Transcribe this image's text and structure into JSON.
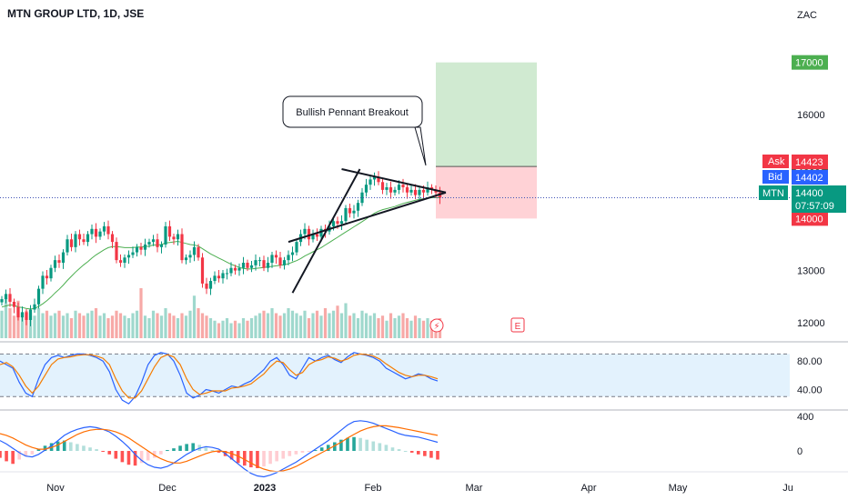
{
  "header": {
    "title": "MTN GROUP LTD, 1D, JSE"
  },
  "currency": "ZAC",
  "chart_data": [
    {
      "type": "candlestick",
      "title": "MTN GROUP LTD, 1D, JSE",
      "ylim": [
        11700,
        17850
      ],
      "y_ticks": [
        "12000",
        "13000",
        "16000"
      ],
      "x_ticks": [
        "Nov",
        "Dec",
        "2023",
        "Feb",
        "Mar",
        "Apr",
        "May",
        "Ju"
      ],
      "closes": [
        12450,
        12550,
        12400,
        12300,
        12100,
        12200,
        12050,
        12250,
        12350,
        12650,
        12900,
        12850,
        13050,
        13200,
        13150,
        13350,
        13600,
        13450,
        13700,
        13600,
        13550,
        13700,
        13800,
        13650,
        13750,
        13850,
        13700,
        13550,
        13200,
        13150,
        13250,
        13300,
        13350,
        13450,
        13400,
        13500,
        13550,
        13600,
        13450,
        13500,
        13850,
        13650,
        13600,
        13700,
        13200,
        13250,
        13300,
        13450,
        13250,
        12750,
        12650,
        12800,
        12900,
        12850,
        12950,
        12950,
        13050,
        13000,
        13050,
        13150,
        13050,
        13100,
        13200,
        13200,
        13050,
        13150,
        13300,
        13250,
        13100,
        13200,
        13300,
        13350,
        13550,
        13700,
        13800,
        13600,
        13700,
        13650,
        13800,
        13750,
        13850,
        13950,
        13900,
        13950,
        14200,
        14100,
        14150,
        14300,
        14500,
        14650,
        14750,
        14800,
        14700,
        14550,
        14600,
        14500,
        14550,
        14650,
        14600,
        14500,
        14550,
        14450,
        14550,
        14500,
        14600,
        14550,
        14500,
        14400
      ],
      "ma_closes": [
        12300,
        12320,
        12340,
        12330,
        12300,
        12290,
        12270,
        12260,
        12270,
        12310,
        12360,
        12420,
        12490,
        12570,
        12640,
        12720,
        12810,
        12890,
        12970,
        13040,
        13110,
        13170,
        13240,
        13300,
        13350,
        13400,
        13440,
        13460,
        13460,
        13450,
        13440,
        13440,
        13440,
        13450,
        13450,
        13460,
        13470,
        13490,
        13490,
        13500,
        13530,
        13540,
        13550,
        13560,
        13540,
        13520,
        13500,
        13490,
        13470,
        13420,
        13370,
        13320,
        13280,
        13240,
        13200,
        13160,
        13120,
        13090,
        13060,
        13040,
        13030,
        13030,
        13040,
        13050,
        13060,
        13070,
        13080,
        13090,
        13100,
        13110,
        13130,
        13160,
        13190,
        13230,
        13280,
        13320,
        13360,
        13400,
        13440,
        13490,
        13540,
        13590,
        13640,
        13690,
        13740,
        13790,
        13840,
        13890,
        13940,
        13990,
        14050,
        14100,
        14140,
        14170,
        14190,
        14210,
        14230,
        14260,
        14290,
        14310,
        14330,
        14350,
        14370,
        14380,
        14390,
        14400,
        14400,
        14400
      ],
      "last_price": "14400",
      "countdown": "07:57:09",
      "symbol": "MTN",
      "ask": {
        "label": "Ask",
        "price": "14423"
      },
      "bid": {
        "label": "Bid",
        "price": "14402"
      },
      "position_tags": {
        "target": "17000",
        "entry": "15000",
        "stop": "14000"
      },
      "long_position": {
        "target": 17000,
        "entry": 15000,
        "stop": 14000
      },
      "pennant": {
        "pole": [
          {
            "i": 71,
            "y": 12570
          },
          {
            "i": 83,
            "y": 14950
          }
        ],
        "upper": [
          {
            "i": 83,
            "y": 14950
          },
          {
            "i": 104,
            "y": 14500
          }
        ],
        "lower": [
          {
            "i": 70,
            "y": 13550
          },
          {
            "i": 104,
            "y": 14500
          }
        ]
      },
      "annotation": "Bullish Pennant Breakout",
      "volume": [
        0.55,
        0.8,
        0.6,
        0.45,
        0.75,
        0.5,
        0.55,
        0.5,
        0.45,
        0.6,
        0.5,
        0.55,
        0.45,
        0.5,
        0.55,
        0.45,
        0.5,
        0.4,
        0.55,
        0.5,
        0.45,
        0.5,
        0.55,
        0.6,
        0.45,
        0.5,
        0.4,
        0.45,
        0.55,
        0.5,
        0.45,
        0.4,
        0.5,
        0.55,
        1.0,
        0.45,
        0.4,
        0.55,
        0.5,
        0.45,
        0.6,
        0.5,
        0.45,
        0.4,
        0.5,
        0.45,
        0.55,
        0.85,
        0.6,
        0.5,
        0.45,
        0.4,
        0.35,
        0.3,
        0.35,
        0.4,
        0.3,
        0.35,
        0.3,
        0.4,
        0.35,
        0.4,
        0.45,
        0.5,
        0.55,
        0.5,
        0.6,
        0.5,
        0.45,
        0.5,
        0.6,
        0.55,
        0.5,
        0.45,
        0.55,
        0.4,
        0.5,
        0.55,
        0.45,
        0.6,
        0.5,
        0.55,
        0.65,
        0.5,
        0.7,
        0.45,
        0.5,
        0.4,
        0.55,
        0.5,
        0.45,
        0.5,
        0.4,
        0.45,
        0.35,
        0.5,
        0.4,
        0.45,
        0.5,
        0.4,
        0.35,
        0.45,
        0.4,
        0.35,
        0.4,
        0.35,
        0.3,
        0.4
      ],
      "event_markers": [
        "dividend-icon",
        "earnings-icon"
      ],
      "earnings_label": "E"
    },
    {
      "type": "line",
      "name": "stochastic",
      "ylim": [
        15,
        102
      ],
      "y_ticks": [
        "80.00",
        "40.00"
      ],
      "band": [
        30,
        90
      ],
      "series": [
        {
          "color": "#2962ff",
          "values": [
            80,
            75,
            70,
            50,
            35,
            30,
            55,
            75,
            85,
            88,
            85,
            88,
            90,
            90,
            88,
            85,
            80,
            65,
            40,
            25,
            20,
            30,
            50,
            75,
            88,
            92,
            90,
            80,
            60,
            35,
            28,
            32,
            40,
            38,
            35,
            40,
            45,
            43,
            48,
            52,
            60,
            68,
            80,
            85,
            75,
            60,
            55,
            70,
            85,
            80,
            85,
            88,
            82,
            78,
            86,
            92,
            90,
            88,
            85,
            80,
            70,
            65,
            60,
            55,
            58,
            62,
            60,
            55,
            52
          ]
        },
        {
          "color": "#f57c00",
          "values": [
            75,
            78,
            72,
            60,
            45,
            35,
            45,
            60,
            75,
            83,
            85,
            86,
            88,
            89,
            89,
            87,
            84,
            75,
            55,
            38,
            28,
            28,
            38,
            55,
            72,
            85,
            89,
            86,
            75,
            55,
            40,
            33,
            35,
            38,
            38,
            38,
            42,
            43,
            45,
            48,
            55,
            62,
            72,
            80,
            78,
            68,
            60,
            64,
            75,
            80,
            82,
            86,
            84,
            80,
            83,
            88,
            90,
            89,
            87,
            83,
            76,
            70,
            64,
            60,
            58,
            60,
            60,
            58,
            55
          ]
        }
      ]
    },
    {
      "type": "bar",
      "name": "macd",
      "ylim": [
        -600,
        600
      ],
      "y_ticks": [
        "400",
        "0"
      ],
      "histogram": [
        -80,
        -120,
        -150,
        -100,
        -60,
        -40,
        20,
        60,
        90,
        110,
        120,
        100,
        80,
        60,
        40,
        20,
        -10,
        -40,
        -90,
        -130,
        -160,
        -170,
        -140,
        -110,
        -80,
        -40,
        10,
        30,
        60,
        80,
        90,
        70,
        40,
        10,
        -20,
        -60,
        -100,
        -140,
        -170,
        -190,
        -200,
        -180,
        -150,
        -120,
        -90,
        -60,
        -40,
        -20,
        -10,
        10,
        40,
        70,
        100,
        130,
        150,
        160,
        150,
        130,
        110,
        90,
        70,
        40,
        20,
        0,
        -20,
        -40,
        -60,
        -80,
        -100
      ],
      "macd_line": [
        120,
        80,
        30,
        -20,
        -60,
        -70,
        -40,
        10,
        60,
        120,
        180,
        220,
        250,
        270,
        280,
        270,
        250,
        220,
        170,
        110,
        40,
        -40,
        -110,
        -160,
        -190,
        -200,
        -180,
        -140,
        -90,
        -40,
        0,
        30,
        50,
        40,
        20,
        -30,
        -90,
        -150,
        -210,
        -260,
        -290,
        -300,
        -280,
        -250,
        -210,
        -170,
        -130,
        -80,
        -30,
        20,
        70,
        120,
        180,
        240,
        300,
        340,
        350,
        340,
        320,
        290,
        260,
        230,
        200,
        180,
        170,
        160,
        140,
        120,
        100
      ],
      "signal_line": [
        200,
        180,
        150,
        110,
        70,
        40,
        20,
        20,
        40,
        70,
        110,
        150,
        190,
        220,
        240,
        250,
        250,
        240,
        220,
        190,
        150,
        100,
        50,
        0,
        -50,
        -90,
        -120,
        -140,
        -140,
        -120,
        -90,
        -60,
        -30,
        -10,
        0,
        -10,
        -30,
        -60,
        -100,
        -140,
        -180,
        -210,
        -230,
        -240,
        -230,
        -210,
        -180,
        -140,
        -100,
        -60,
        -20,
        20,
        60,
        100,
        150,
        190,
        230,
        260,
        280,
        290,
        290,
        280,
        270,
        255,
        240,
        225,
        210,
        195,
        180
      ]
    }
  ],
  "colors": {
    "up": "#089981",
    "down": "#f23645",
    "ma": "#4caf50",
    "pennant": "#131722",
    "target": "#4caf50",
    "entry": "#555555",
    "stop": "#f23645",
    "ask": "#f23645",
    "bid": "#2962ff",
    "last": "#089981",
    "stoch_band": "#e3f2fd"
  }
}
